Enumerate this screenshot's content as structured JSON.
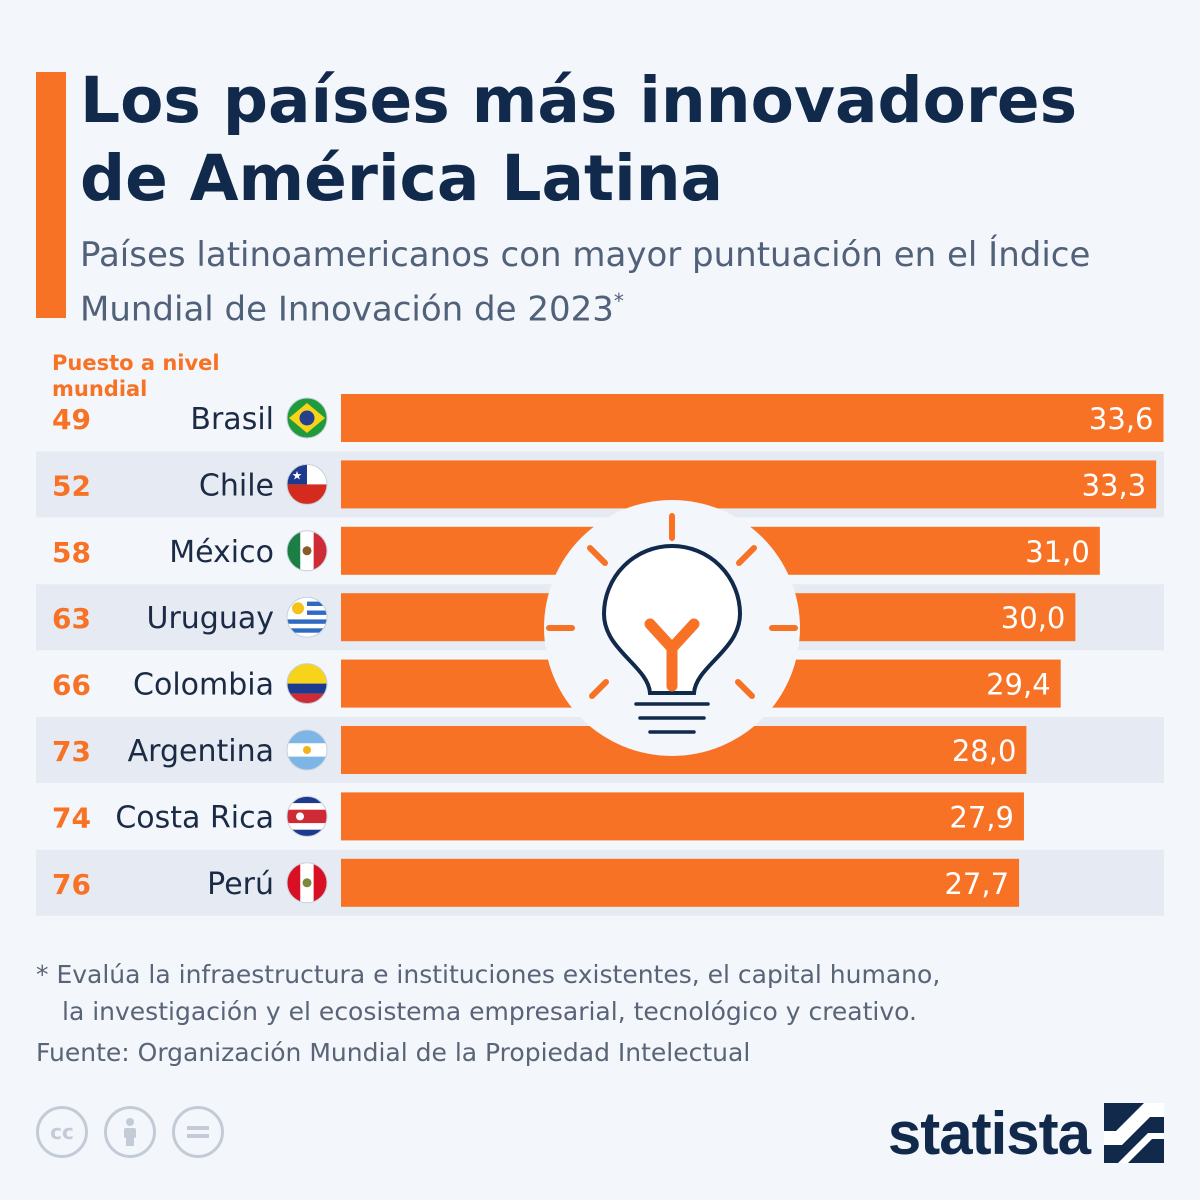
{
  "header": {
    "title": "Los países más innovadores de América Latina",
    "subtitle": "Países latinoamericanos con mayor puntuación en el Índice Mundial de Innovación de 2023",
    "subtitle_mark": "*"
  },
  "chart_data": {
    "type": "bar",
    "orientation": "horizontal",
    "rank_header": "Puesto a nivel mundial",
    "categories": [
      "Brasil",
      "Chile",
      "México",
      "Uruguay",
      "Colombia",
      "Argentina",
      "Costa Rica",
      "Perú"
    ],
    "ranks": [
      "49",
      "52",
      "58",
      "63",
      "66",
      "73",
      "74",
      "76"
    ],
    "values": [
      33.6,
      33.3,
      31.0,
      30.0,
      29.4,
      28.0,
      27.9,
      27.7
    ],
    "value_labels": [
      "33,6",
      "33,3",
      "31,0",
      "30,0",
      "29,4",
      "28,0",
      "27,9",
      "27,7"
    ],
    "flags": [
      "brazil-flag-icon",
      "chile-flag-icon",
      "mexico-flag-icon",
      "uruguay-flag-icon",
      "colombia-flag-icon",
      "argentina-flag-icon",
      "costa-rica-flag-icon",
      "peru-flag-icon"
    ],
    "bar_color": "#f87225",
    "value_label_color": "#ffffff",
    "alternating_row_shading": true,
    "decoration": "lightbulb-icon"
  },
  "footer": {
    "note_lines": [
      "* Evalúa la infraestructura e instituciones existentes, el capital humano,",
      "la investigación y el ecosistema empresarial, tecnológico y creativo."
    ],
    "source": "Fuente: Organización Mundial de la Propiedad Intelectual",
    "license_icons": [
      "cc-icon",
      "attribution-icon",
      "no-derivatives-icon"
    ],
    "brand": "statista"
  },
  "colors": {
    "accent": "#f87225",
    "title": "#11294a",
    "text_muted": "#52617a",
    "background": "#f3f6fa",
    "row_shade": "#e6ebf3"
  }
}
